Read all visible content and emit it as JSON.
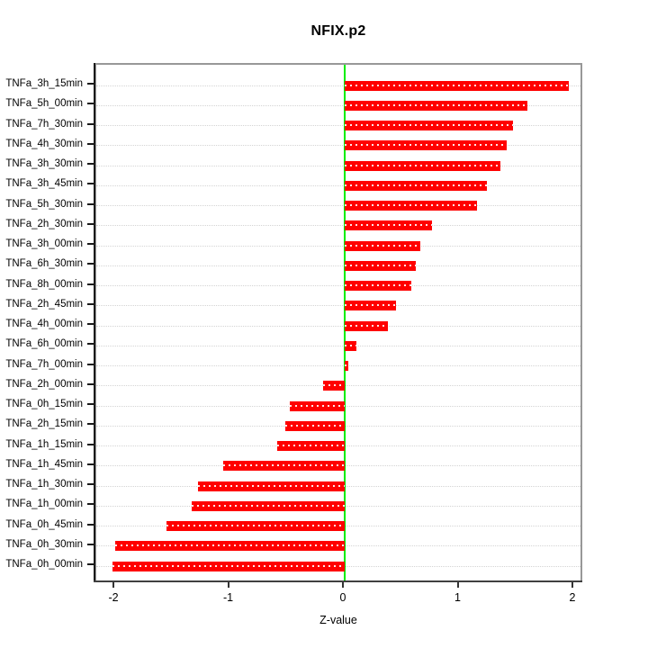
{
  "chart_data": {
    "type": "bar",
    "orientation": "horizontal",
    "title": "NFIX.p2",
    "xlabel": "Z-value",
    "ylabel": "",
    "categories": [
      "TNFa_3h_15min",
      "TNFa_5h_00min",
      "TNFa_7h_30min",
      "TNFa_4h_30min",
      "TNFa_3h_30min",
      "TNFa_3h_45min",
      "TNFa_5h_30min",
      "TNFa_2h_30min",
      "TNFa_3h_00min",
      "TNFa_6h_30min",
      "TNFa_8h_00min",
      "TNFa_2h_45min",
      "TNFa_4h_00min",
      "TNFa_6h_00min",
      "TNFa_7h_00min",
      "TNFa_2h_00min",
      "TNFa_0h_15min",
      "TNFa_2h_15min",
      "TNFa_1h_15min",
      "TNFa_1h_45min",
      "TNFa_1h_30min",
      "TNFa_1h_00min",
      "TNFa_0h_45min",
      "TNFa_0h_30min",
      "TNFa_0h_00min"
    ],
    "values": [
      1.95,
      1.59,
      1.47,
      1.41,
      1.36,
      1.24,
      1.15,
      0.76,
      0.66,
      0.62,
      0.58,
      0.45,
      0.38,
      0.1,
      0.03,
      -0.19,
      -0.48,
      -0.52,
      -0.59,
      -1.06,
      -1.28,
      -1.33,
      -1.55,
      -2.0,
      -2.02
    ],
    "xticks": [
      -2,
      -1,
      0,
      1,
      2
    ],
    "xlim": [
      -2.165,
      2.086
    ],
    "grid": "horizontal-dotted",
    "legend": "none",
    "zero_reference_line": 0,
    "colors": {
      "bar": "#ff0000",
      "bar_inner_dash": "#ffffff",
      "zero_line": "#00ee00",
      "grid": "#d4d4d4",
      "box": "#989898",
      "axis": "#333333",
      "text": "#000000",
      "background": "#ffffff"
    }
  }
}
